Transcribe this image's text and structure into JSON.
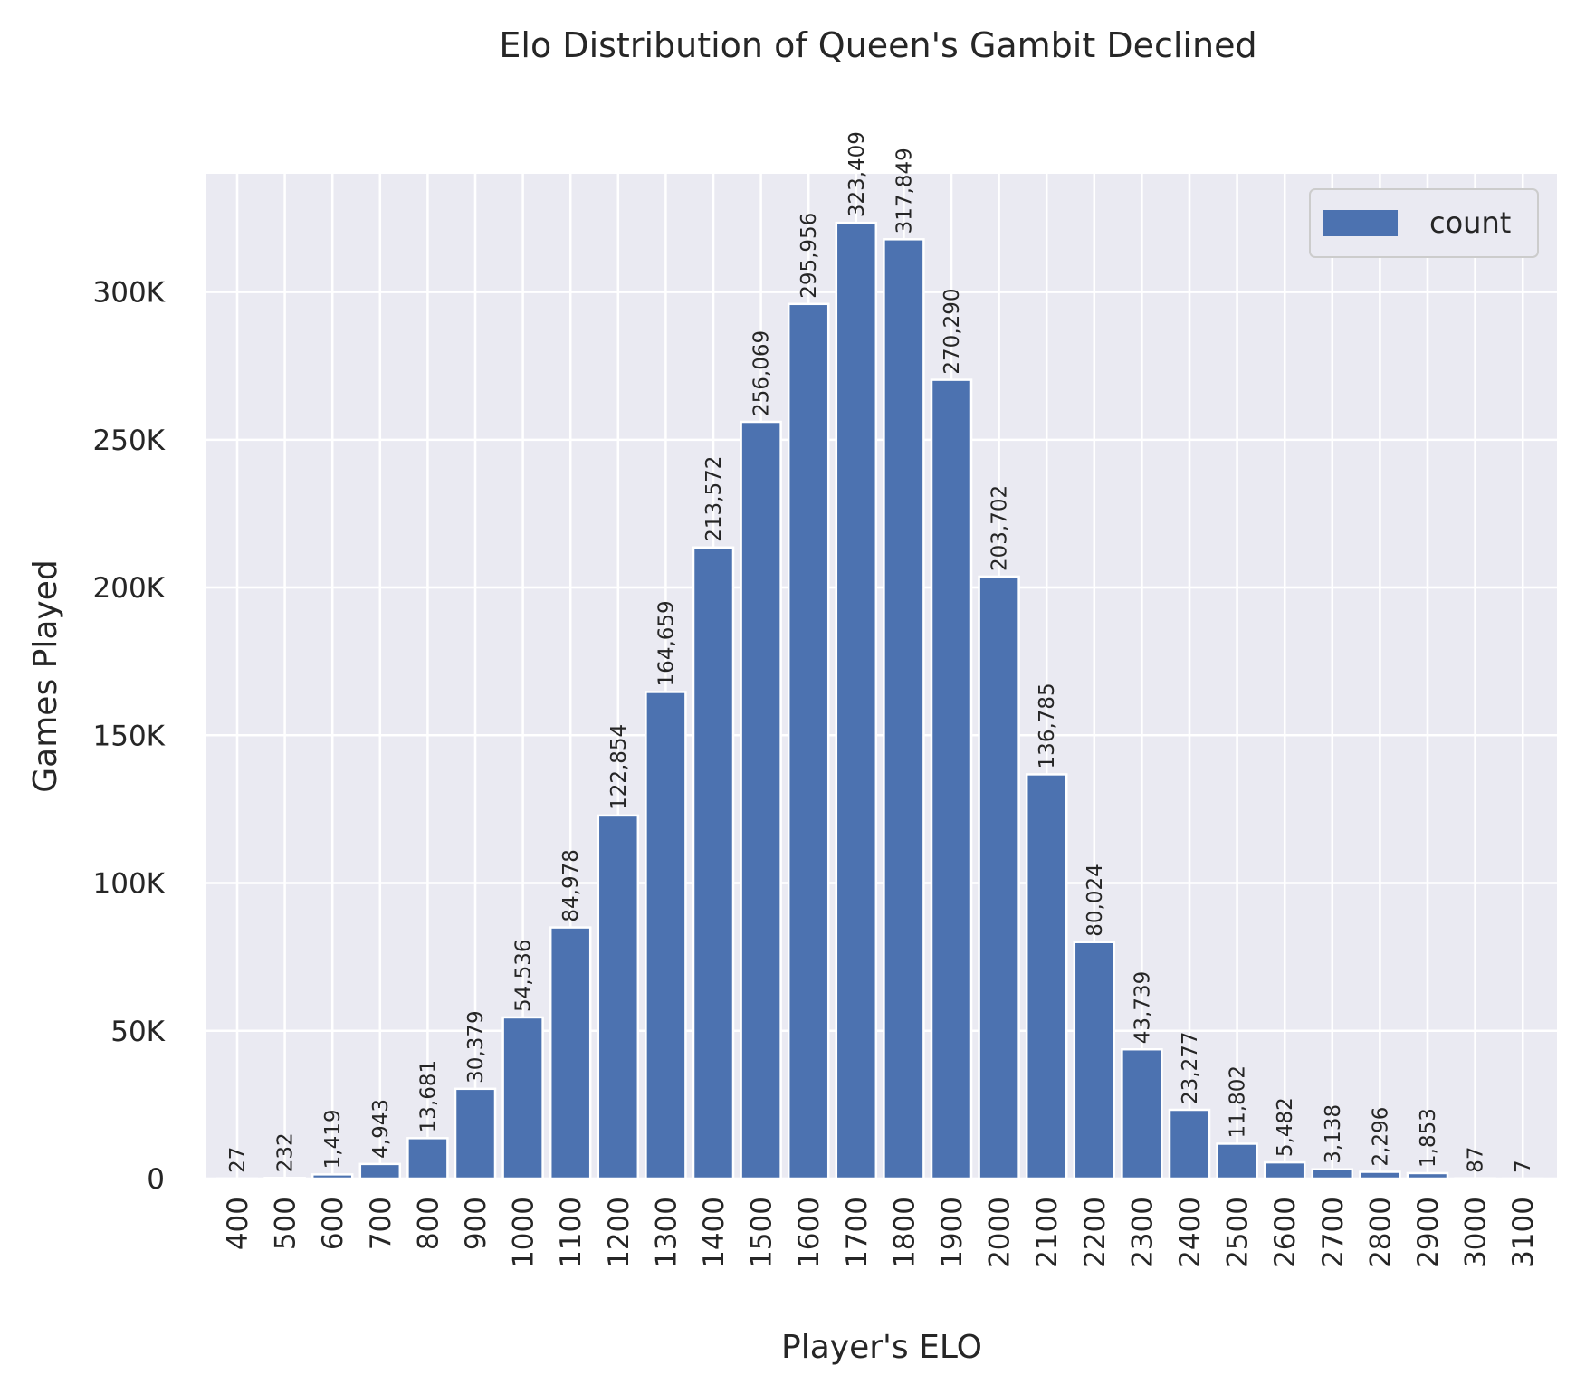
{
  "chart_data": {
    "type": "bar",
    "title": "Elo Distribution of Queen's Gambit Declined",
    "xlabel": "Player's ELO",
    "ylabel": "Games Played",
    "categories": [
      "400",
      "500",
      "600",
      "700",
      "800",
      "900",
      "1000",
      "1100",
      "1200",
      "1300",
      "1400",
      "1500",
      "1600",
      "1700",
      "1800",
      "1900",
      "2000",
      "2100",
      "2200",
      "2300",
      "2400",
      "2500",
      "2600",
      "2700",
      "2800",
      "2900",
      "3000",
      "3100"
    ],
    "series": [
      {
        "name": "count",
        "values": [
          27,
          232,
          1419,
          4943,
          13681,
          30379,
          54536,
          84978,
          122854,
          164659,
          213572,
          256069,
          295956,
          323409,
          317849,
          270290,
          203702,
          136785,
          80024,
          43739,
          23277,
          11802,
          5482,
          3138,
          2296,
          1853,
          87,
          7
        ],
        "labels": [
          "27",
          "232",
          "1,419",
          "4,943",
          "13,681",
          "30,379",
          "54,536",
          "84,978",
          "122,854",
          "164,659",
          "213,572",
          "256,069",
          "295,956",
          "323,409",
          "317,849",
          "270,290",
          "203,702",
          "136,785",
          "80,024",
          "43,739",
          "23,277",
          "11,802",
          "5,482",
          "3,138",
          "2,296",
          "1,853",
          "87",
          "7"
        ],
        "color": "#4c72b0"
      }
    ],
    "ylim": [
      0,
      340000
    ],
    "yticks": [
      0,
      50000,
      100000,
      150000,
      200000,
      250000,
      300000
    ],
    "ytick_labels": [
      "0",
      "50K",
      "100K",
      "150K",
      "200K",
      "250K",
      "300K"
    ],
    "grid": true,
    "legend": {
      "position": "top-right",
      "entries": [
        "count"
      ]
    },
    "background_color": "#eaeaf2",
    "grid_color": "#ffffff"
  }
}
